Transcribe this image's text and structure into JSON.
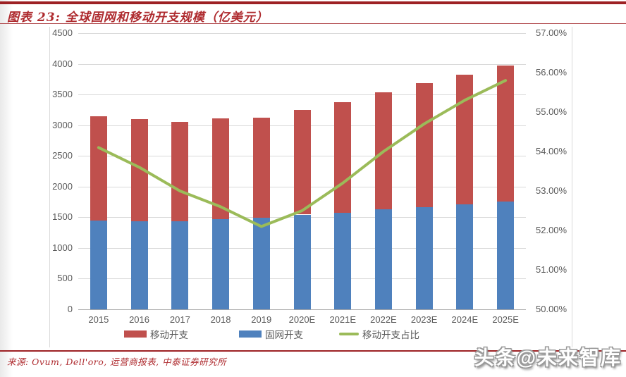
{
  "header": {
    "title": "图表 23: 全球固网和移动开支规模（亿美元）"
  },
  "footer": {
    "source": "来源: Ovum, Dell'oro, 运营商报表, 中泰证券研究所",
    "watermark": "头条@未来智库"
  },
  "colors": {
    "accent_red": "#ae2a2e",
    "rule_red": "#9d2124",
    "bar_mobile": "#c0504d",
    "bar_fixed": "#4f81bd",
    "line_ratio": "#9bbb59",
    "gridline": "#d9d9d9",
    "axis_line": "#a6a6a6",
    "axis_text": "#595959"
  },
  "chart_data": {
    "type": "bar",
    "subtype": "stacked-columns-with-right-axis-line",
    "title": "全球固网和移动开支规模（亿美元）",
    "categories": [
      "2015",
      "2016",
      "2017",
      "2018",
      "2019",
      "2020E",
      "2021E",
      "2022E",
      "2023E",
      "2024E",
      "2025E"
    ],
    "series": [
      {
        "name": "移动开支",
        "type": "bar",
        "stack_order": 2,
        "color": "#c0504d",
        "values": [
          1704,
          1662,
          1617,
          1636,
          1626,
          1706,
          1793,
          1912,
          2013,
          2112,
          2215
        ]
      },
      {
        "name": "固网开支",
        "type": "bar",
        "stack_order": 1,
        "color": "#4f81bd",
        "values": [
          1446,
          1438,
          1434,
          1474,
          1494,
          1544,
          1577,
          1628,
          1667,
          1708,
          1755
        ]
      },
      {
        "name": "移动开支占比",
        "type": "line",
        "axis": "right",
        "color": "#9bbb59",
        "values": [
          54.1,
          53.6,
          53.0,
          52.6,
          52.1,
          52.5,
          53.2,
          54.0,
          54.7,
          55.3,
          55.8
        ]
      }
    ],
    "stacked_totals": [
      3150,
      3100,
      3051,
      3110,
      3120,
      3250,
      3370,
      3540,
      3680,
      3820,
      3970
    ],
    "left_axis": {
      "min": 0,
      "max": 4500,
      "step": 500
    },
    "right_axis": {
      "min": 50,
      "max": 57,
      "step": 1,
      "decimals": 2,
      "suffix": "%"
    },
    "legend_position": "bottom",
    "grid": true
  }
}
